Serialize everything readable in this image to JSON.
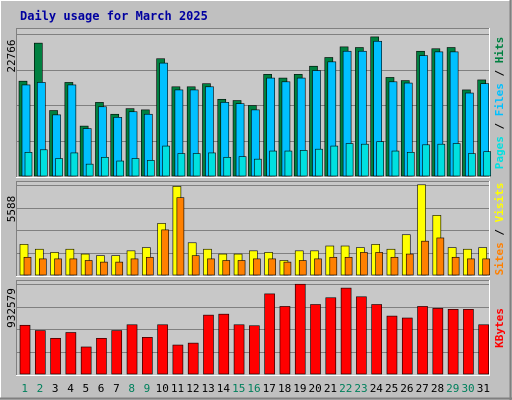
{
  "title": "Daily usage for March 2025",
  "colors": {
    "background": "#c0c0c0",
    "plot": "#c8c8c8",
    "title": "#0000a0",
    "hits": "#008040",
    "files": "#00c0ff",
    "pages": "#00e0e0",
    "visits": "#ffff00",
    "sites": "#ff8000",
    "kbytes": "#ff0000",
    "weekend_label": "#00805c",
    "weekday_label": "#000000"
  },
  "chart_data": [
    {
      "type": "bar",
      "panel": "hits-files-pages",
      "ymax_label": "22766",
      "ylim": [
        0,
        22766
      ],
      "legend": {
        "pages": "Pages",
        "files": "Files",
        "hits": "Hits",
        "sep": " / "
      },
      "categories": [
        "1",
        "2",
        "3",
        "4",
        "5",
        "6",
        "7",
        "8",
        "9",
        "10",
        "11",
        "12",
        "13",
        "14",
        "15",
        "16",
        "17",
        "18",
        "19",
        "20",
        "21",
        "22",
        "23",
        "24",
        "25",
        "26",
        "27",
        "28",
        "29",
        "30",
        "31"
      ],
      "weekend_days": [
        "1",
        "2",
        "8",
        "9",
        "15",
        "16",
        "22",
        "23",
        "29",
        "30"
      ],
      "series": [
        {
          "name": "Hits",
          "values": [
            15200,
            21300,
            10500,
            15000,
            8000,
            11800,
            9900,
            10800,
            10600,
            18800,
            14300,
            14300,
            14800,
            12300,
            12100,
            11300,
            16300,
            15700,
            16300,
            17600,
            19000,
            20700,
            20600,
            22300,
            15800,
            15300,
            20000,
            20400,
            20600,
            13800,
            15400
          ]
        },
        {
          "name": "Files",
          "values": [
            14600,
            15000,
            9800,
            14600,
            7600,
            11100,
            9400,
            10300,
            9900,
            18100,
            13800,
            13800,
            14300,
            11800,
            11600,
            10600,
            15700,
            15100,
            15700,
            16900,
            18300,
            20000,
            20000,
            21600,
            15100,
            14900,
            19300,
            19900,
            19900,
            13300,
            14800
          ]
        },
        {
          "name": "Pages",
          "values": [
            3800,
            4200,
            2800,
            3700,
            1900,
            3000,
            2400,
            2800,
            2500,
            4800,
            3600,
            3600,
            3700,
            3000,
            3100,
            2700,
            4000,
            4000,
            4100,
            4300,
            4800,
            5200,
            5100,
            5500,
            4000,
            3800,
            5000,
            5100,
            5200,
            3600,
            3900
          ]
        }
      ]
    },
    {
      "type": "bar",
      "panel": "visits-sites",
      "ymax_label": "5588",
      "ylim": [
        0,
        5588
      ],
      "legend": {
        "visits": "Visits",
        "sites": "Sites",
        "sep": " / "
      },
      "categories": [
        "1",
        "2",
        "3",
        "4",
        "5",
        "6",
        "7",
        "8",
        "9",
        "10",
        "11",
        "12",
        "13",
        "14",
        "15",
        "16",
        "17",
        "18",
        "19",
        "20",
        "21",
        "22",
        "23",
        "24",
        "25",
        "26",
        "27",
        "28",
        "29",
        "30",
        "31"
      ],
      "series": [
        {
          "name": "Visits",
          "values": [
            1900,
            1600,
            1400,
            1600,
            1300,
            1200,
            1200,
            1500,
            1700,
            3200,
            5500,
            2000,
            1600,
            1300,
            1300,
            1500,
            1400,
            900,
            1500,
            1500,
            1800,
            1800,
            1700,
            1900,
            1600,
            2500,
            5600,
            3700,
            1700,
            1600,
            1700
          ]
        },
        {
          "name": "Sites",
          "values": [
            1100,
            1000,
            1000,
            1000,
            900,
            800,
            800,
            1000,
            1100,
            2800,
            4800,
            1200,
            1000,
            900,
            900,
            1000,
            1000,
            800,
            900,
            1000,
            1100,
            1100,
            1400,
            1400,
            1100,
            1300,
            2100,
            2300,
            1100,
            1000,
            1000
          ]
        }
      ]
    },
    {
      "type": "bar",
      "panel": "kbytes",
      "ymax_label": "932579",
      "ylim": [
        0,
        932579
      ],
      "legend": {
        "kbytes": "KBytes"
      },
      "categories": [
        "1",
        "2",
        "3",
        "4",
        "5",
        "6",
        "7",
        "8",
        "9",
        "10",
        "11",
        "12",
        "13",
        "14",
        "15",
        "16",
        "17",
        "18",
        "19",
        "20",
        "21",
        "22",
        "23",
        "24",
        "25",
        "26",
        "27",
        "28",
        "29",
        "30",
        "31"
      ],
      "series": [
        {
          "name": "KBytes",
          "values": [
            505000,
            450000,
            370000,
            430000,
            280000,
            370000,
            450000,
            510000,
            380000,
            510000,
            300000,
            320000,
            610000,
            620000,
            510000,
            500000,
            830000,
            700000,
            930000,
            720000,
            790000,
            890000,
            800000,
            720000,
            600000,
            580000,
            700000,
            680000,
            670000,
            670000,
            510000
          ]
        }
      ]
    }
  ]
}
